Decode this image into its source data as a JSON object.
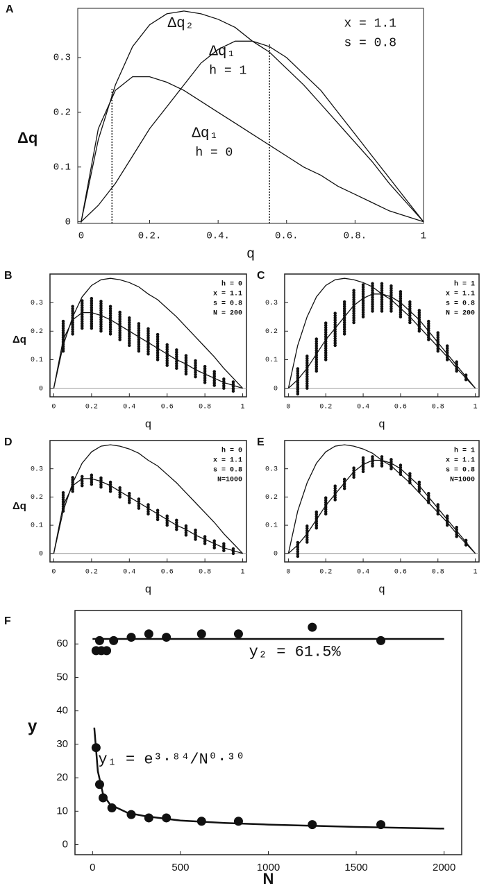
{
  "chart_data": [
    {
      "type": "line",
      "panel": "A",
      "xlabel": "q",
      "ylabel": "Δq",
      "xlim": [
        -0.01,
        1.0
      ],
      "ylim": [
        -0.003,
        0.39
      ],
      "xticks": [
        0,
        {
          "value": 0.2,
          "label": "0.2."
        },
        {
          "value": 0.4,
          "label": "0.4."
        },
        {
          "value": 0.6,
          "label": "0.6."
        },
        {
          "value": 0.8,
          "label": "0.8."
        },
        1
      ],
      "yticks": [
        0,
        0.1,
        0.2,
        0.3
      ],
      "lines": [
        {
          "name": "Δq₂",
          "x": [
            0,
            0.05,
            0.1,
            0.15,
            0.2,
            0.25,
            0.3,
            0.35,
            0.4,
            0.45,
            0.5,
            0.55,
            0.6,
            0.65,
            0.7,
            0.75,
            0.8,
            0.85,
            0.9,
            0.95,
            1
          ],
          "values": [
            0,
            0.15,
            0.25,
            0.32,
            0.36,
            0.38,
            0.385,
            0.38,
            0.37,
            0.355,
            0.33,
            0.31,
            0.28,
            0.25,
            0.215,
            0.18,
            0.145,
            0.11,
            0.07,
            0.035,
            0
          ]
        },
        {
          "name": "Δq₁",
          "x": [
            0,
            0.05,
            0.1,
            0.15,
            0.2,
            0.25,
            0.3,
            0.35,
            0.4,
            0.45,
            0.5,
            0.55,
            0.6,
            0.65,
            0.7,
            0.75,
            0.8,
            0.85,
            0.9,
            0.95,
            1
          ],
          "values": [
            0,
            0.03,
            0.07,
            0.12,
            0.17,
            0.21,
            0.25,
            0.29,
            0.315,
            0.33,
            0.33,
            0.32,
            0.3,
            0.27,
            0.24,
            0.2,
            0.16,
            0.12,
            0.08,
            0.04,
            0
          ]
        },
        {
          "name": "Δq₁",
          "x": [
            0,
            0.05,
            0.1,
            0.15,
            0.2,
            0.25,
            0.3,
            0.35,
            0.4,
            0.45,
            0.5,
            0.55,
            0.6,
            0.65,
            0.7,
            0.75,
            0.8,
            0.85,
            0.9,
            0.95,
            1
          ],
          "values": [
            0,
            0.17,
            0.24,
            0.265,
            0.265,
            0.255,
            0.24,
            0.22,
            0.2,
            0.18,
            0.16,
            0.14,
            0.12,
            0.1,
            0.085,
            0.065,
            0.05,
            0.035,
            0.02,
            0.01,
            0
          ]
        }
      ],
      "vlines": [
        {
          "x": 0.09,
          "y": 0.245
        },
        {
          "x": 0.55,
          "y": 0.325
        }
      ],
      "annotations": [
        "h = 1",
        "h = 0",
        "x = 1.1",
        "s = 0.8"
      ]
    },
    {
      "type": "scatter",
      "panel": "B",
      "xlabel": "q",
      "ylabel": "Δq",
      "xlim": [
        -0.02,
        1.02
      ],
      "ylim": [
        -0.03,
        0.4
      ],
      "xticks": [
        0,
        0.2,
        0.4,
        0.6,
        0.8,
        1
      ],
      "yticks": [
        0,
        0.1,
        0.2,
        0.3
      ],
      "lines": [
        {
          "x": [
            0,
            0.05,
            0.1,
            0.15,
            0.2,
            0.25,
            0.3,
            0.35,
            0.4,
            0.45,
            0.5,
            0.55,
            0.6,
            0.65,
            0.7,
            0.75,
            0.8,
            0.85,
            0.9,
            0.95,
            1
          ],
          "values": [
            0,
            0.15,
            0.25,
            0.32,
            0.36,
            0.38,
            0.385,
            0.38,
            0.37,
            0.355,
            0.33,
            0.31,
            0.28,
            0.25,
            0.215,
            0.18,
            0.145,
            0.11,
            0.07,
            0.035,
            0
          ]
        },
        {
          "x": [
            0,
            0.05,
            0.1,
            0.15,
            0.2,
            0.25,
            0.3,
            0.35,
            0.4,
            0.45,
            0.5,
            0.55,
            0.6,
            0.65,
            0.7,
            0.75,
            0.8,
            0.85,
            0.9,
            0.95,
            1
          ],
          "values": [
            0,
            0.17,
            0.24,
            0.265,
            0.265,
            0.255,
            0.24,
            0.22,
            0.2,
            0.18,
            0.16,
            0.14,
            0.12,
            0.1,
            0.085,
            0.065,
            0.05,
            0.035,
            0.02,
            0.01,
            0
          ]
        }
      ],
      "clusters": {
        "x": [
          0.05,
          0.1,
          0.15,
          0.2,
          0.25,
          0.3,
          0.35,
          0.4,
          0.45,
          0.5,
          0.55,
          0.6,
          0.65,
          0.7,
          0.75,
          0.8,
          0.85,
          0.9,
          0.95
        ],
        "low": [
          0.13,
          0.19,
          0.21,
          0.21,
          0.2,
          0.19,
          0.17,
          0.15,
          0.13,
          0.12,
          0.1,
          0.08,
          0.07,
          0.05,
          0.04,
          0.02,
          0.01,
          0,
          -0.01
        ],
        "high": [
          0.24,
          0.29,
          0.31,
          0.32,
          0.31,
          0.29,
          0.27,
          0.25,
          0.23,
          0.21,
          0.19,
          0.16,
          0.14,
          0.12,
          0.1,
          0.08,
          0.06,
          0.04,
          0.03
        ]
      },
      "annotations": [
        "h = 0",
        "x = 1.1",
        "s = 0.8",
        "N = 200"
      ]
    },
    {
      "type": "scatter",
      "panel": "C",
      "xlabel": "q",
      "xlim": [
        -0.02,
        1.02
      ],
      "ylim": [
        -0.03,
        0.4
      ],
      "xticks": [
        0,
        0.2,
        0.4,
        0.6,
        0.8,
        1
      ],
      "yticks": [
        0,
        0.1,
        0.2,
        0.3
      ],
      "lines": [
        {
          "x": [
            0,
            0.05,
            0.1,
            0.15,
            0.2,
            0.25,
            0.3,
            0.35,
            0.4,
            0.45,
            0.5,
            0.55,
            0.6,
            0.65,
            0.7,
            0.75,
            0.8,
            0.85,
            0.9,
            0.95,
            1
          ],
          "values": [
            0,
            0.15,
            0.25,
            0.32,
            0.36,
            0.38,
            0.385,
            0.38,
            0.37,
            0.355,
            0.33,
            0.31,
            0.28,
            0.25,
            0.215,
            0.18,
            0.145,
            0.11,
            0.07,
            0.035,
            0
          ]
        },
        {
          "x": [
            0,
            0.05,
            0.1,
            0.15,
            0.2,
            0.25,
            0.3,
            0.35,
            0.4,
            0.45,
            0.5,
            0.55,
            0.6,
            0.65,
            0.7,
            0.75,
            0.8,
            0.85,
            0.9,
            0.95,
            1
          ],
          "values": [
            0,
            0.03,
            0.07,
            0.12,
            0.17,
            0.21,
            0.25,
            0.29,
            0.315,
            0.33,
            0.33,
            0.32,
            0.3,
            0.27,
            0.24,
            0.2,
            0.16,
            0.12,
            0.08,
            0.04,
            0
          ]
        }
      ],
      "clusters": {
        "x": [
          0.05,
          0.1,
          0.15,
          0.2,
          0.25,
          0.3,
          0.35,
          0.4,
          0.45,
          0.5,
          0.55,
          0.6,
          0.65,
          0.7,
          0.75,
          0.8,
          0.85,
          0.9,
          0.95
        ],
        "low": [
          -0.02,
          0,
          0.06,
          0.1,
          0.15,
          0.19,
          0.23,
          0.25,
          0.27,
          0.27,
          0.27,
          0.25,
          0.23,
          0.2,
          0.17,
          0.13,
          0.1,
          0.06,
          0.03
        ],
        "high": [
          0.07,
          0.12,
          0.18,
          0.23,
          0.27,
          0.31,
          0.35,
          0.37,
          0.37,
          0.37,
          0.36,
          0.34,
          0.31,
          0.28,
          0.24,
          0.2,
          0.15,
          0.1,
          0.05
        ]
      },
      "annotations": [
        "h = 1",
        "x = 1.1",
        "s = 0.8",
        "N = 200"
      ]
    },
    {
      "type": "scatter",
      "panel": "D",
      "xlabel": "q",
      "ylabel": "Δq",
      "xlim": [
        -0.02,
        1.02
      ],
      "ylim": [
        -0.03,
        0.4
      ],
      "xticks": [
        0,
        0.2,
        0.4,
        0.6,
        0.8,
        1
      ],
      "yticks": [
        0,
        0.1,
        0.2,
        0.3
      ],
      "lines": [
        {
          "x": [
            0,
            0.05,
            0.1,
            0.15,
            0.2,
            0.25,
            0.3,
            0.35,
            0.4,
            0.45,
            0.5,
            0.55,
            0.6,
            0.65,
            0.7,
            0.75,
            0.8,
            0.85,
            0.9,
            0.95,
            1
          ],
          "values": [
            0,
            0.15,
            0.25,
            0.32,
            0.36,
            0.38,
            0.385,
            0.38,
            0.37,
            0.355,
            0.33,
            0.31,
            0.28,
            0.25,
            0.215,
            0.18,
            0.145,
            0.11,
            0.07,
            0.035,
            0
          ]
        },
        {
          "x": [
            0,
            0.05,
            0.1,
            0.15,
            0.2,
            0.25,
            0.3,
            0.35,
            0.4,
            0.45,
            0.5,
            0.55,
            0.6,
            0.65,
            0.7,
            0.75,
            0.8,
            0.85,
            0.9,
            0.95,
            1
          ],
          "values": [
            0,
            0.17,
            0.24,
            0.265,
            0.265,
            0.255,
            0.24,
            0.22,
            0.2,
            0.18,
            0.16,
            0.14,
            0.12,
            0.1,
            0.085,
            0.065,
            0.05,
            0.035,
            0.02,
            0.01,
            0
          ]
        }
      ],
      "clusters": {
        "x": [
          0.05,
          0.1,
          0.15,
          0.2,
          0.25,
          0.3,
          0.35,
          0.4,
          0.45,
          0.5,
          0.55,
          0.6,
          0.65,
          0.7,
          0.75,
          0.8,
          0.85,
          0.9,
          0.95
        ],
        "low": [
          0.15,
          0.22,
          0.24,
          0.245,
          0.235,
          0.22,
          0.2,
          0.18,
          0.16,
          0.14,
          0.12,
          0.1,
          0.085,
          0.065,
          0.05,
          0.035,
          0.02,
          0.01,
          0
        ],
        "high": [
          0.22,
          0.27,
          0.28,
          0.285,
          0.275,
          0.26,
          0.24,
          0.22,
          0.2,
          0.18,
          0.16,
          0.14,
          0.12,
          0.1,
          0.085,
          0.065,
          0.05,
          0.035,
          0.02
        ]
      },
      "annotations": [
        "h = 0",
        "x = 1.1",
        "s = 0.8",
        "N=1000"
      ]
    },
    {
      "type": "scatter",
      "panel": "E",
      "xlabel": "q",
      "xlim": [
        -0.02,
        1.02
      ],
      "ylim": [
        -0.03,
        0.4
      ],
      "xticks": [
        0,
        0.2,
        0.4,
        0.6,
        0.8,
        1
      ],
      "yticks": [
        0,
        0.1,
        0.2,
        0.3
      ],
      "lines": [
        {
          "x": [
            0,
            0.05,
            0.1,
            0.15,
            0.2,
            0.25,
            0.3,
            0.35,
            0.4,
            0.45,
            0.5,
            0.55,
            0.6,
            0.65,
            0.7,
            0.75,
            0.8,
            0.85,
            0.9,
            0.95,
            1
          ],
          "values": [
            0,
            0.15,
            0.25,
            0.32,
            0.36,
            0.38,
            0.385,
            0.38,
            0.37,
            0.355,
            0.33,
            0.31,
            0.28,
            0.25,
            0.215,
            0.18,
            0.145,
            0.11,
            0.07,
            0.035,
            0
          ]
        },
        {
          "x": [
            0,
            0.05,
            0.1,
            0.15,
            0.2,
            0.25,
            0.3,
            0.35,
            0.4,
            0.45,
            0.5,
            0.55,
            0.6,
            0.65,
            0.7,
            0.75,
            0.8,
            0.85,
            0.9,
            0.95,
            1
          ],
          "values": [
            0,
            0.03,
            0.07,
            0.12,
            0.17,
            0.21,
            0.25,
            0.29,
            0.315,
            0.33,
            0.33,
            0.32,
            0.3,
            0.27,
            0.24,
            0.2,
            0.16,
            0.12,
            0.08,
            0.04,
            0
          ]
        }
      ],
      "clusters": {
        "x": [
          0.05,
          0.1,
          0.15,
          0.2,
          0.25,
          0.3,
          0.35,
          0.4,
          0.45,
          0.5,
          0.55,
          0.6,
          0.65,
          0.7,
          0.75,
          0.8,
          0.85,
          0.9,
          0.95
        ],
        "low": [
          -0.01,
          0.04,
          0.09,
          0.14,
          0.19,
          0.23,
          0.27,
          0.29,
          0.31,
          0.31,
          0.3,
          0.28,
          0.25,
          0.22,
          0.18,
          0.14,
          0.1,
          0.06,
          0.03
        ],
        "high": [
          0.04,
          0.1,
          0.15,
          0.2,
          0.24,
          0.27,
          0.31,
          0.34,
          0.35,
          0.35,
          0.34,
          0.32,
          0.29,
          0.26,
          0.22,
          0.18,
          0.14,
          0.1,
          0.05
        ]
      },
      "annotations": [
        "h = 1",
        "x = 1.1",
        "s = 0.8",
        "N=1000"
      ]
    },
    {
      "type": "scatter",
      "panel": "F",
      "xlabel": "N",
      "ylabel": "y",
      "xlim": [
        -100,
        2100
      ],
      "ylim": [
        -3,
        70
      ],
      "xticks": [
        0,
        500,
        1000,
        1500,
        2000
      ],
      "yticks": [
        0,
        10,
        20,
        30,
        40,
        50,
        60
      ],
      "lines": [
        {
          "x": [
            0,
            2000
          ],
          "values": [
            61.5,
            61.5
          ]
        },
        {
          "x": [
            10,
            30,
            60,
            100,
            200,
            300,
            500,
            750,
            1000,
            1500,
            2000
          ],
          "values": [
            35,
            22,
            15,
            12,
            9.5,
            8.5,
            7.2,
            6.5,
            6,
            5.3,
            4.8
          ]
        }
      ],
      "points": [
        {
          "x": [
            20,
            40,
            50,
            80,
            120,
            220,
            320,
            420,
            620,
            830,
            1250,
            1640
          ],
          "values": [
            58,
            61,
            58,
            58,
            61,
            62,
            63,
            62,
            63,
            63,
            65,
            61
          ]
        },
        {
          "x": [
            20,
            40,
            60,
            110,
            220,
            320,
            420,
            620,
            830,
            1250,
            1640
          ],
          "values": [
            29,
            18,
            14,
            11,
            9,
            8,
            8,
            7,
            7,
            6,
            6
          ]
        }
      ],
      "annotations": [
        "y₂ = 61.5%",
        "y₁ = e³·⁸⁴/N⁰·³⁰"
      ]
    }
  ]
}
